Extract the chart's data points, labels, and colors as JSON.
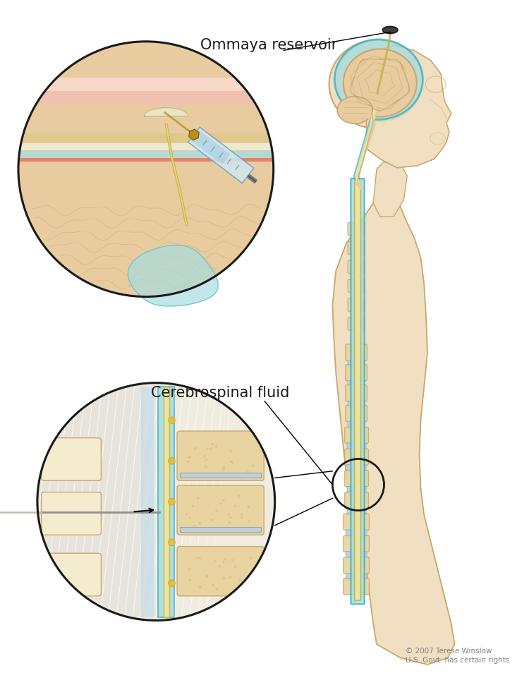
{
  "label_ommaya": "Ommaya reservoir",
  "label_csf": "Cerebrospinal fluid",
  "copyright": "© 2007 Terese Winslow\nU.S. Govt. has certain rights",
  "bg_color": "#ffffff",
  "skin_color": "#f0dfc0",
  "skin_dark": "#d8b888",
  "skin_outline": "#c8a870",
  "bone_color": "#e8d4a0",
  "bone_light": "#f5ecd0",
  "csf_color": "#7ecece",
  "csf_blue": "#3ab0c0",
  "csf_fill": "#a8dce0",
  "brain_fill": "#e8cca0",
  "brain_dark": "#c8a870",
  "brain_sulci": "#d0a860",
  "cord_yellow": "#c8b040",
  "cord_cream": "#e8d888",
  "cord_light": "#f0e8a0",
  "circle_line": "#1a1a1a",
  "label_color": "#1a1a1a",
  "disc_color": "#c0d0dc",
  "flesh_pink": "#f0c0b0",
  "flesh_top": "#f8d8c8",
  "skull_bone": "#e0c88c",
  "skull_white": "#f0e8d0",
  "muscle_white": "#e8e0d0",
  "syringe_blue": "#a8c8e0",
  "syringe_glass": "#d0e8f0",
  "needle_gold": "#c0a040",
  "syringe_metal": "#b0b0a0",
  "connector_gold": "#b8901c"
}
